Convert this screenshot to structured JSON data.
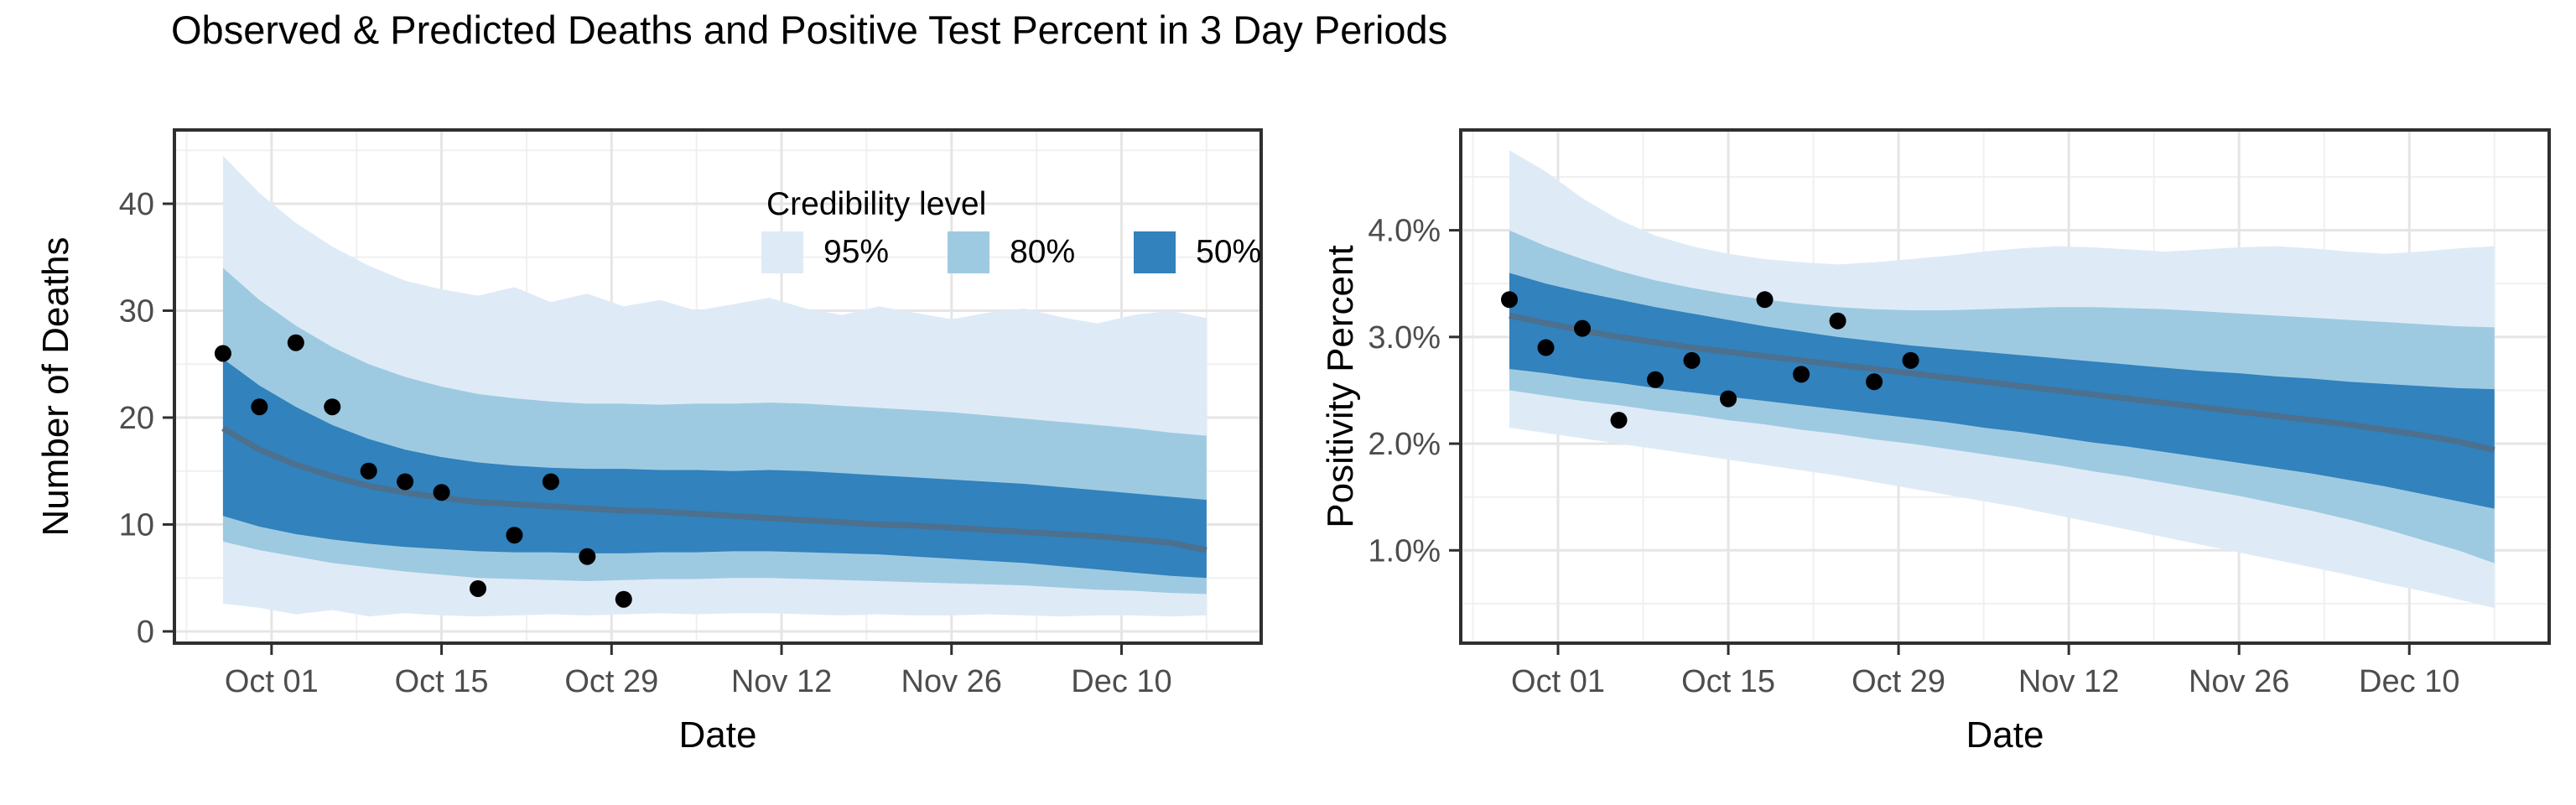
{
  "title": "Observed & Predicted Deaths and Positive Test Percent in 3 Day Periods",
  "legend": {
    "title": "Credibility level",
    "items": [
      {
        "label": "95%",
        "color": "#deebf7"
      },
      {
        "label": "80%",
        "color": "#9ecae1"
      },
      {
        "label": "50%",
        "color": "#3182bd"
      }
    ]
  },
  "colors": {
    "band95": "#deebf7",
    "band80": "#9ecae1",
    "band50": "#3182bd",
    "median_line": "#4c708e",
    "observed_point": "#000000",
    "grid_major": "#e5e5e5",
    "grid_minor": "#f0f0f0",
    "panel_border": "#2f2f2f",
    "tick_text": "#4d4d4d"
  },
  "chart_data": [
    {
      "type": "area",
      "panel": "deaths",
      "ylabel": "Number of Deaths",
      "xlabel": "Date",
      "xlim": [
        -4,
        85.5
      ],
      "ylim": [
        -1.1,
        46.9
      ],
      "x_ticks": [
        {
          "offset": 4,
          "label": "Oct 01"
        },
        {
          "offset": 18,
          "label": "Oct 15"
        },
        {
          "offset": 32,
          "label": "Oct 29"
        },
        {
          "offset": 46,
          "label": "Nov 12"
        },
        {
          "offset": 60,
          "label": "Nov 26"
        },
        {
          "offset": 74,
          "label": "Dec 10"
        }
      ],
      "x_minor": [
        -3,
        11,
        25,
        39,
        53,
        67,
        81
      ],
      "y_ticks": [
        {
          "v": 0,
          "label": "0"
        },
        {
          "v": 10,
          "label": "10"
        },
        {
          "v": 20,
          "label": "20"
        },
        {
          "v": 30,
          "label": "30"
        },
        {
          "v": 40,
          "label": "40"
        }
      ],
      "y_minor": [
        5,
        15,
        25,
        35,
        45
      ],
      "offsets": [
        0,
        3,
        6,
        9,
        12,
        15,
        18,
        21,
        24,
        27,
        30,
        33,
        36,
        39,
        42,
        45,
        48,
        51,
        54,
        57,
        60,
        63,
        66,
        69,
        72,
        75,
        78,
        81
      ],
      "bands": {
        "lo95": [
          2.6,
          2.2,
          1.6,
          2.0,
          1.4,
          1.7,
          1.5,
          1.4,
          1.5,
          1.6,
          1.5,
          1.6,
          1.7,
          1.6,
          1.7,
          1.7,
          1.6,
          1.5,
          1.6,
          1.5,
          1.5,
          1.6,
          1.5,
          1.4,
          1.5,
          1.5,
          1.4,
          1.5
        ],
        "hi95": [
          44.5,
          41.0,
          38.2,
          36.0,
          34.2,
          32.8,
          32.0,
          31.4,
          32.2,
          30.8,
          31.6,
          30.4,
          31.0,
          30.0,
          30.6,
          31.2,
          30.2,
          29.6,
          30.4,
          29.8,
          29.2,
          29.8,
          30.2,
          29.4,
          28.8,
          29.6,
          30.0,
          29.3
        ],
        "lo80": [
          8.4,
          7.6,
          7.0,
          6.4,
          6.0,
          5.6,
          5.3,
          5.0,
          4.9,
          4.8,
          4.7,
          4.8,
          4.9,
          4.9,
          5.0,
          5.0,
          4.9,
          4.8,
          4.7,
          4.6,
          4.5,
          4.4,
          4.3,
          4.1,
          3.9,
          3.8,
          3.6,
          3.5
        ],
        "hi80": [
          34.0,
          31.0,
          28.6,
          26.6,
          25.0,
          23.8,
          22.9,
          22.2,
          21.8,
          21.5,
          21.3,
          21.3,
          21.2,
          21.3,
          21.3,
          21.4,
          21.3,
          21.1,
          20.9,
          20.7,
          20.5,
          20.2,
          19.9,
          19.6,
          19.3,
          19.0,
          18.6,
          18.3
        ],
        "lo50": [
          10.8,
          9.8,
          9.1,
          8.6,
          8.2,
          7.9,
          7.7,
          7.5,
          7.4,
          7.4,
          7.3,
          7.3,
          7.4,
          7.4,
          7.5,
          7.5,
          7.4,
          7.3,
          7.2,
          7.0,
          6.8,
          6.6,
          6.4,
          6.1,
          5.8,
          5.5,
          5.2,
          5.0
        ],
        "hi50": [
          25.5,
          23.0,
          21.0,
          19.3,
          18.0,
          17.0,
          16.3,
          15.8,
          15.5,
          15.3,
          15.2,
          15.2,
          15.1,
          15.1,
          15.0,
          15.1,
          15.0,
          14.8,
          14.6,
          14.4,
          14.2,
          14.0,
          13.8,
          13.5,
          13.2,
          12.9,
          12.6,
          12.3
        ]
      },
      "median": [
        19.0,
        17.0,
        15.6,
        14.5,
        13.6,
        13.0,
        12.5,
        12.1,
        11.9,
        11.7,
        11.5,
        11.3,
        11.2,
        11.0,
        10.8,
        10.6,
        10.4,
        10.2,
        10.0,
        9.9,
        9.7,
        9.5,
        9.3,
        9.1,
        8.9,
        8.6,
        8.3,
        7.6
      ],
      "observed": {
        "offsets": [
          0,
          3,
          6,
          9,
          12,
          15,
          18,
          21,
          24,
          27,
          30,
          33
        ],
        "values": [
          26,
          21,
          27,
          21,
          15,
          14,
          13,
          4,
          9,
          14,
          7,
          3
        ]
      }
    },
    {
      "type": "area",
      "panel": "positivity",
      "ylabel": "Positivity Percent",
      "xlabel": "Date",
      "xlim": [
        -4,
        85.5
      ],
      "ylim": [
        0.13,
        4.94
      ],
      "x_ticks": [
        {
          "offset": 4,
          "label": "Oct 01"
        },
        {
          "offset": 18,
          "label": "Oct 15"
        },
        {
          "offset": 32,
          "label": "Oct 29"
        },
        {
          "offset": 46,
          "label": "Nov 12"
        },
        {
          "offset": 60,
          "label": "Nov 26"
        },
        {
          "offset": 74,
          "label": "Dec 10"
        }
      ],
      "x_minor": [
        -3,
        11,
        25,
        39,
        53,
        67,
        81
      ],
      "y_ticks": [
        {
          "v": 1,
          "label": "1.0%"
        },
        {
          "v": 2,
          "label": "2.0%"
        },
        {
          "v": 3,
          "label": "3.0%"
        },
        {
          "v": 4,
          "label": "4.0%"
        }
      ],
      "y_minor": [
        0.5,
        1.5,
        2.5,
        3.5,
        4.5
      ],
      "offsets": [
        0,
        3,
        6,
        9,
        12,
        15,
        18,
        21,
        24,
        27,
        30,
        33,
        36,
        39,
        42,
        45,
        48,
        51,
        54,
        57,
        60,
        63,
        66,
        69,
        72,
        75,
        78,
        81
      ],
      "bands": {
        "lo95": [
          2.15,
          2.1,
          2.05,
          2.0,
          1.95,
          1.9,
          1.85,
          1.8,
          1.75,
          1.7,
          1.64,
          1.58,
          1.52,
          1.46,
          1.4,
          1.33,
          1.26,
          1.19,
          1.12,
          1.05,
          0.98,
          0.91,
          0.84,
          0.77,
          0.69,
          0.62,
          0.54,
          0.46
        ],
        "hi95": [
          4.75,
          4.55,
          4.3,
          4.1,
          3.95,
          3.85,
          3.78,
          3.73,
          3.7,
          3.68,
          3.7,
          3.73,
          3.76,
          3.8,
          3.83,
          3.85,
          3.84,
          3.82,
          3.8,
          3.82,
          3.84,
          3.85,
          3.83,
          3.8,
          3.78,
          3.8,
          3.83,
          3.85
        ],
        "lo80": [
          2.5,
          2.45,
          2.4,
          2.36,
          2.31,
          2.27,
          2.22,
          2.18,
          2.13,
          2.09,
          2.04,
          2.0,
          1.95,
          1.9,
          1.85,
          1.8,
          1.74,
          1.69,
          1.63,
          1.57,
          1.51,
          1.44,
          1.37,
          1.29,
          1.2,
          1.1,
          1.0,
          0.88
        ],
        "hi80": [
          4.0,
          3.85,
          3.73,
          3.62,
          3.53,
          3.46,
          3.4,
          3.35,
          3.31,
          3.28,
          3.26,
          3.25,
          3.25,
          3.26,
          3.27,
          3.28,
          3.28,
          3.27,
          3.26,
          3.24,
          3.22,
          3.2,
          3.18,
          3.16,
          3.14,
          3.12,
          3.1,
          3.09
        ],
        "lo50": [
          2.7,
          2.66,
          2.61,
          2.57,
          2.52,
          2.48,
          2.44,
          2.4,
          2.36,
          2.32,
          2.28,
          2.24,
          2.2,
          2.15,
          2.11,
          2.06,
          2.01,
          1.97,
          1.92,
          1.87,
          1.82,
          1.77,
          1.72,
          1.66,
          1.6,
          1.53,
          1.46,
          1.39
        ],
        "hi50": [
          3.6,
          3.5,
          3.42,
          3.35,
          3.28,
          3.22,
          3.16,
          3.1,
          3.05,
          3.0,
          2.96,
          2.92,
          2.89,
          2.86,
          2.83,
          2.8,
          2.77,
          2.74,
          2.71,
          2.68,
          2.66,
          2.63,
          2.61,
          2.58,
          2.56,
          2.54,
          2.52,
          2.51
        ]
      },
      "median": [
        3.2,
        3.13,
        3.06,
        3.0,
        2.95,
        2.9,
        2.86,
        2.82,
        2.78,
        2.74,
        2.7,
        2.66,
        2.62,
        2.58,
        2.54,
        2.5,
        2.46,
        2.42,
        2.38,
        2.34,
        2.3,
        2.26,
        2.22,
        2.18,
        2.13,
        2.08,
        2.02,
        1.94
      ],
      "observed": {
        "offsets": [
          0,
          3,
          6,
          9,
          12,
          15,
          18,
          21,
          24,
          27,
          30,
          33
        ],
        "values": [
          3.35,
          2.9,
          3.08,
          2.22,
          2.6,
          2.78,
          2.42,
          3.35,
          2.65,
          3.15,
          2.58,
          2.78
        ]
      }
    }
  ]
}
